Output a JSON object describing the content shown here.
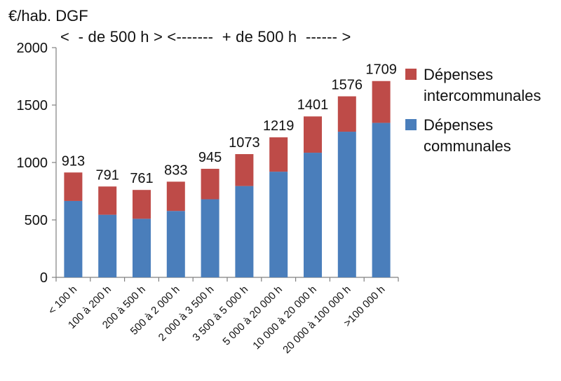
{
  "chart_data": {
    "type": "bar",
    "stacked": true,
    "title": "",
    "unit_label": "€/hab. DGF",
    "group_label": "<  - de 500 h > <-------  + de 500 h  ------ >",
    "xlabel": "",
    "ylabel": "",
    "ylim": [
      0,
      2000
    ],
    "yticks": [
      0,
      500,
      1000,
      1500,
      2000
    ],
    "grid": false,
    "legend_position": "right",
    "categories": [
      "< 100 h",
      "100 à 200 h",
      "200 à 500 h",
      "500 à 2 000 h",
      "2 000 à 3 500 h",
      "3 500 à 5 000 h",
      "5 000 à 20 000 h",
      "10 000 à 20 000 h",
      "20 000 à 100 000 h",
      ">100 000 h"
    ],
    "series": [
      {
        "name": "Dépenses communales",
        "color": "#4a7ebb",
        "values": [
          665,
          545,
          510,
          578,
          680,
          795,
          920,
          1085,
          1268,
          1345
        ]
      },
      {
        "name": "Dépenses intercommunales",
        "color": "#be4b48",
        "values": [
          248,
          246,
          251,
          255,
          265,
          278,
          299,
          316,
          308,
          364
        ]
      }
    ],
    "totals": [
      913,
      791,
      761,
      833,
      945,
      1073,
      1219,
      1401,
      1576,
      1709
    ]
  },
  "legend": [
    {
      "label": "Dépenses\nintercommunales",
      "color": "#be4b48"
    },
    {
      "label": "Dépenses\ncommunales",
      "color": "#4a7ebb"
    }
  ]
}
